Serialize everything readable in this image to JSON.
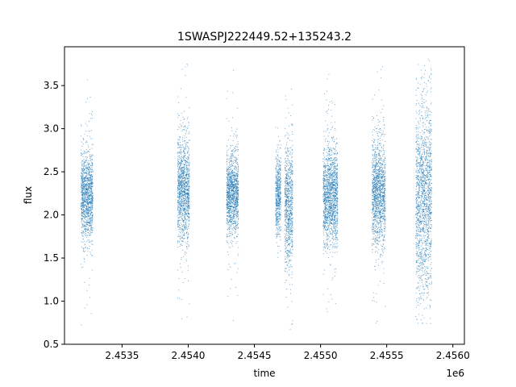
{
  "chart_data": {
    "type": "scatter",
    "title": "1SWASPJ222449.52+135243.2",
    "xlabel": "time",
    "ylabel": "flux",
    "x_offset_label": "1e6",
    "xlim": [
      2453065,
      2456087
    ],
    "ylim": [
      0.5,
      3.95
    ],
    "x_ticks": [
      2453500,
      2454000,
      2454500,
      2455000,
      2455500,
      2456000
    ],
    "x_tick_labels": [
      "2.4535",
      "2.4540",
      "2.4545",
      "2.4550",
      "2.4555",
      "2.4560"
    ],
    "y_ticks": [
      0.5,
      1.0,
      1.5,
      2.0,
      2.5,
      3.0,
      3.5
    ],
    "y_tick_labels": [
      "0.5",
      "1.0",
      "1.5",
      "2.0",
      "2.5",
      "3.0",
      "3.5"
    ],
    "grid": false,
    "marker_color": "#1f77b4",
    "series": [
      {
        "observing_seasons": [
          {
            "x_range": [
              2453190,
              2453280
            ],
            "y_center": 2.22,
            "y_spread": 0.25,
            "y_range": [
              0.68,
              3.6
            ]
          },
          {
            "x_range": [
              2453920,
              2454010
            ],
            "y_center": 2.28,
            "y_spread": 0.3,
            "y_range": [
              0.65,
              3.85
            ]
          },
          {
            "x_range": [
              2454290,
              2454380
            ],
            "y_center": 2.25,
            "y_spread": 0.22,
            "y_range": [
              0.75,
              3.72
            ]
          },
          {
            "x_range": [
              2454660,
              2454700
            ],
            "y_center": 2.22,
            "y_spread": 0.22,
            "y_range": [
              1.5,
              3.05
            ]
          },
          {
            "x_range": [
              2454730,
              2454790
            ],
            "y_center": 2.12,
            "y_spread": 0.35,
            "y_range": [
              0.65,
              3.55
            ]
          },
          {
            "x_range": [
              2455020,
              2455130
            ],
            "y_center": 2.22,
            "y_spread": 0.28,
            "y_range": [
              0.8,
              3.65
            ]
          },
          {
            "x_range": [
              2455390,
              2455490
            ],
            "y_center": 2.25,
            "y_spread": 0.3,
            "y_range": [
              0.65,
              3.8
            ]
          },
          {
            "x_range": [
              2455720,
              2455840
            ],
            "y_center": 2.2,
            "y_spread": 0.55,
            "y_range": [
              0.65,
              3.83
            ]
          }
        ]
      }
    ]
  }
}
